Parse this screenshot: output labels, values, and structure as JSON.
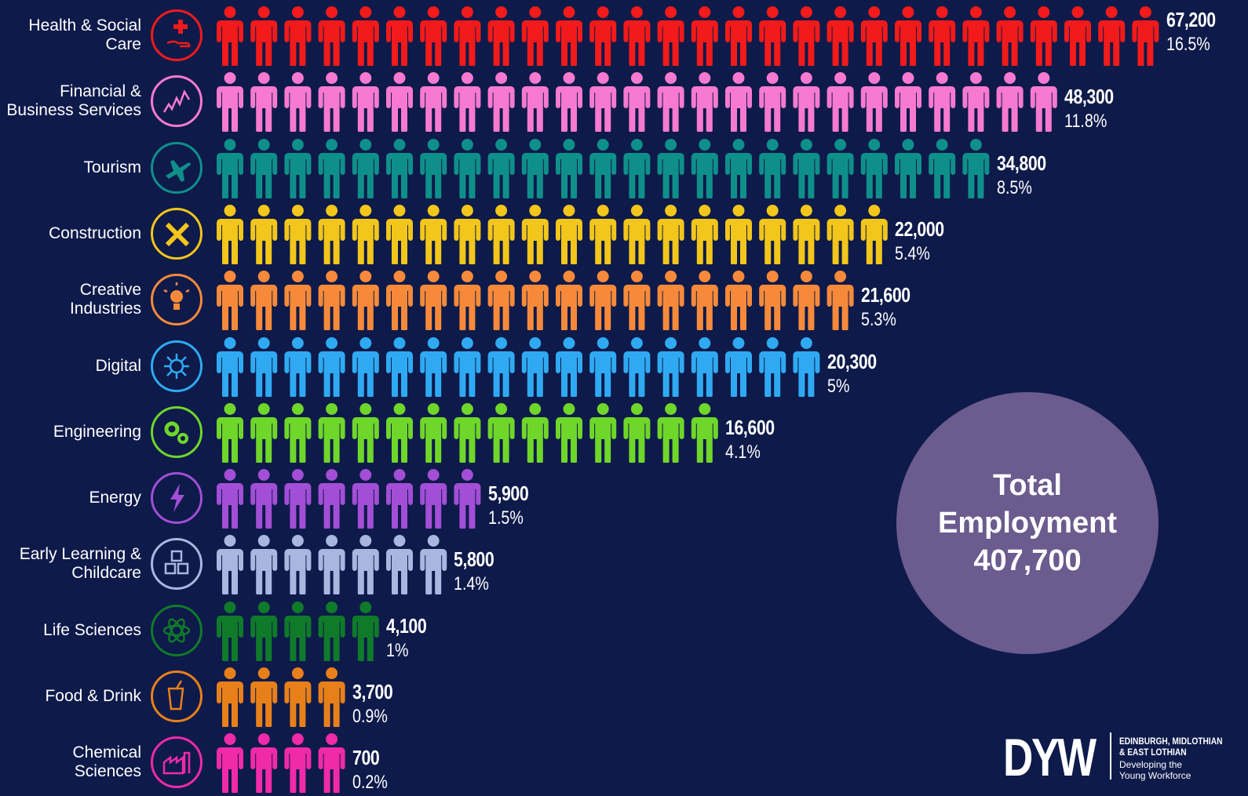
{
  "chart_data": {
    "type": "pictogram",
    "total_label_lines": [
      "Total",
      "Employment",
      "407,700"
    ],
    "categories": [
      {
        "label": "Health & Social\nCare",
        "value": 67200,
        "value_text": "67,200",
        "pct_text": "16.5%",
        "percent": 16.5,
        "color": "#f21a1a",
        "icon": "hand-health-icon"
      },
      {
        "label": "Financial &\nBusiness Services",
        "value": 48300,
        "value_text": "48,300",
        "pct_text": "11.8%",
        "percent": 11.8,
        "color": "#f77ad0",
        "icon": "finance-graph-icon"
      },
      {
        "label": "Tourism",
        "value": 34800,
        "value_text": "34,800",
        "pct_text": "8.5%",
        "percent": 8.5,
        "color": "#0f8f8a",
        "icon": "airplane-icon"
      },
      {
        "label": "Construction",
        "value": 22000,
        "value_text": "22,000",
        "pct_text": "5.4%",
        "percent": 5.4,
        "color": "#f2c61a",
        "icon": "tools-icon"
      },
      {
        "label": "Creative\nIndustries",
        "value": 21600,
        "value_text": "21,600",
        "pct_text": "5.3%",
        "percent": 5.3,
        "color": "#f78a3a",
        "icon": "lightbulb-icon"
      },
      {
        "label": "Digital",
        "value": 20300,
        "value_text": "20,300",
        "pct_text": "5%",
        "percent": 5,
        "color": "#2faaf2",
        "icon": "circuit-icon"
      },
      {
        "label": "Engineering",
        "value": 16600,
        "value_text": "16,600",
        "pct_text": "4.1%",
        "percent": 4.1,
        "color": "#6fd62a",
        "icon": "gears-icon"
      },
      {
        "label": "Energy",
        "value": 5900,
        "value_text": "5,900",
        "pct_text": "1.5%",
        "percent": 1.5,
        "color": "#a24ed6",
        "icon": "lightning-icon"
      },
      {
        "label": "Early Learning &\nChildcare",
        "value": 5800,
        "value_text": "5,800",
        "pct_text": "1.4%",
        "percent": 1.4,
        "color": "#a9b6e0",
        "icon": "blocks-icon"
      },
      {
        "label": "Life Sciences",
        "value": 4100,
        "value_text": "4,100",
        "pct_text": "1%",
        "percent": 1,
        "color": "#0f7a2a",
        "icon": "atom-icon"
      },
      {
        "label": "Food & Drink",
        "value": 3700,
        "value_text": "3,700",
        "pct_text": "0.9%",
        "percent": 0.9,
        "color": "#e8801a",
        "icon": "drink-icon"
      },
      {
        "label": "Chemical\nSciences",
        "value": 700,
        "value_text": "700",
        "pct_text": "0.2%",
        "percent": 0.2,
        "color": "#f02aa8",
        "icon": "factory-icon"
      }
    ],
    "figures": [
      28,
      25,
      23,
      20,
      19,
      18,
      15,
      8,
      7,
      5,
      4,
      4
    ]
  },
  "logo": {
    "mark": "DYW",
    "line1": "EDINBURGH, MIDLOTHIAN",
    "line2": "& EAST LOTHIAN",
    "line3": "Developing the",
    "line4": "Young Workforce"
  },
  "colors": {
    "background": "#0e1a4a",
    "total_circle": "#6b5b8e"
  }
}
